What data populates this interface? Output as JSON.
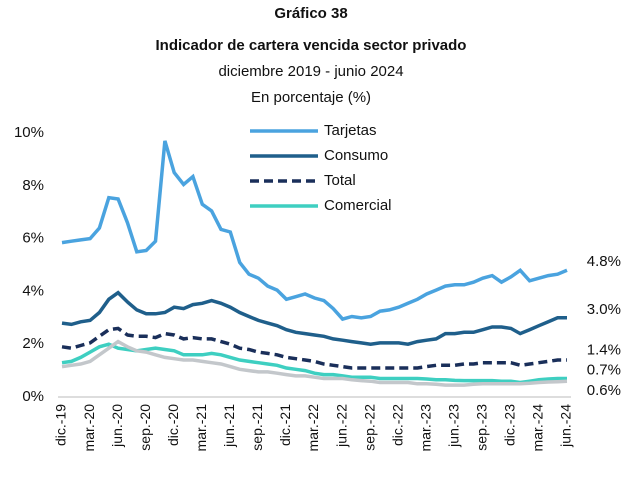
{
  "chart_data": {
    "type": "line",
    "title": "Gráfico 38",
    "title2": "Indicador de cartera vencida sector privado",
    "subtitle": "diciembre 2019 - junio 2024",
    "note": "En porcentaje (%)",
    "categories": [
      "dic.-19",
      null,
      null,
      "mar.-20",
      null,
      null,
      "jun.-20",
      null,
      null,
      "sep.-20",
      null,
      null,
      "dic.-20",
      null,
      null,
      "mar.-21",
      null,
      null,
      "jun.-21",
      null,
      null,
      "sep.-21",
      null,
      null,
      "dic.-21",
      null,
      null,
      "mar.-22",
      null,
      null,
      "jun.-22",
      null,
      null,
      "sep.-22",
      null,
      null,
      "dic.-22",
      null,
      null,
      "mar.-23",
      null,
      null,
      "jun.-23",
      null,
      null,
      "sep.-23",
      null,
      null,
      "dic.-23",
      null,
      null,
      "mar.-24",
      null,
      null,
      "jun.-24"
    ],
    "ylim": [
      0,
      10
    ],
    "yticks": [
      {
        "value": 0,
        "label": "0%"
      },
      {
        "value": 2,
        "label": "2%"
      },
      {
        "value": 4,
        "label": "4%"
      },
      {
        "value": 6,
        "label": "6%"
      },
      {
        "value": 8,
        "label": "8%"
      },
      {
        "value": 10,
        "label": "10%"
      }
    ],
    "grid": false,
    "series": [
      {
        "name": "Tarjetas",
        "color": "#4aa3df",
        "values": [
          5.85,
          5.9,
          5.95,
          6.0,
          6.4,
          7.55,
          7.5,
          6.6,
          5.5,
          5.55,
          5.9,
          9.7,
          8.5,
          8.05,
          8.35,
          7.3,
          7.05,
          6.35,
          6.25,
          5.1,
          4.65,
          4.5,
          4.2,
          4.05,
          3.7,
          3.8,
          3.9,
          3.75,
          3.65,
          3.35,
          2.95,
          3.05,
          3.0,
          3.05,
          3.25,
          3.3,
          3.4,
          3.55,
          3.7,
          3.9,
          4.05,
          4.2,
          4.25,
          4.25,
          4.35,
          4.5,
          4.6,
          4.35,
          4.55,
          4.8,
          4.4,
          4.5,
          4.6,
          4.65,
          4.8
        ],
        "value_labels": [
          null,
          null,
          null,
          null,
          null,
          null,
          null,
          null,
          null,
          null,
          null,
          null,
          null,
          null,
          null,
          null,
          null,
          null,
          null,
          null,
          null,
          null,
          null,
          null,
          null,
          null,
          null,
          null,
          null,
          null,
          null,
          null,
          null,
          null,
          null,
          null,
          null,
          null,
          null,
          null,
          null,
          null,
          null,
          null,
          null,
          null,
          null,
          null,
          null,
          null,
          null,
          null,
          null,
          null,
          "4.8%"
        ]
      },
      {
        "name": "Consumo",
        "color": "#1f5f8b",
        "values": [
          2.8,
          2.75,
          2.85,
          2.9,
          3.2,
          3.7,
          3.95,
          3.6,
          3.3,
          3.15,
          3.15,
          3.2,
          3.4,
          3.35,
          3.5,
          3.55,
          3.65,
          3.55,
          3.4,
          3.2,
          3.05,
          2.9,
          2.8,
          2.7,
          2.55,
          2.45,
          2.4,
          2.35,
          2.3,
          2.2,
          2.15,
          2.1,
          2.05,
          2.0,
          2.05,
          2.05,
          2.05,
          2.0,
          2.1,
          2.15,
          2.2,
          2.4,
          2.4,
          2.45,
          2.45,
          2.55,
          2.65,
          2.65,
          2.6,
          2.4,
          2.55,
          2.7,
          2.85,
          3.0,
          3.0
        ],
        "value_labels": [
          null,
          null,
          null,
          null,
          null,
          null,
          null,
          null,
          null,
          null,
          null,
          null,
          null,
          null,
          null,
          null,
          null,
          null,
          null,
          null,
          null,
          null,
          null,
          null,
          null,
          null,
          null,
          null,
          null,
          null,
          null,
          null,
          null,
          null,
          null,
          null,
          null,
          null,
          null,
          null,
          null,
          null,
          null,
          null,
          null,
          null,
          null,
          null,
          null,
          null,
          null,
          null,
          null,
          null,
          "3.0%"
        ]
      },
      {
        "name": "Total",
        "color": "#1a2f5a",
        "dash": true,
        "values": [
          1.9,
          1.85,
          1.95,
          2.05,
          2.3,
          2.55,
          2.6,
          2.35,
          2.3,
          2.3,
          2.25,
          2.4,
          2.35,
          2.2,
          2.25,
          2.2,
          2.2,
          2.1,
          2.0,
          1.85,
          1.8,
          1.7,
          1.65,
          1.6,
          1.5,
          1.45,
          1.4,
          1.35,
          1.25,
          1.2,
          1.15,
          1.1,
          1.1,
          1.1,
          1.1,
          1.1,
          1.1,
          1.1,
          1.1,
          1.15,
          1.2,
          1.2,
          1.2,
          1.25,
          1.25,
          1.3,
          1.3,
          1.3,
          1.3,
          1.2,
          1.25,
          1.3,
          1.35,
          1.4,
          1.4
        ],
        "value_labels": [
          null,
          null,
          null,
          null,
          null,
          null,
          null,
          null,
          null,
          null,
          null,
          null,
          null,
          null,
          null,
          null,
          null,
          null,
          null,
          null,
          null,
          null,
          null,
          null,
          null,
          null,
          null,
          null,
          null,
          null,
          null,
          null,
          null,
          null,
          null,
          null,
          null,
          null,
          null,
          null,
          null,
          null,
          null,
          null,
          null,
          null,
          null,
          null,
          null,
          null,
          null,
          null,
          null,
          null,
          "1.4%"
        ]
      },
      {
        "name": "Comercial",
        "color": "#3ecfc1",
        "values": [
          1.3,
          1.35,
          1.5,
          1.7,
          1.9,
          2.0,
          1.85,
          1.8,
          1.75,
          1.8,
          1.85,
          1.8,
          1.75,
          1.6,
          1.6,
          1.6,
          1.65,
          1.6,
          1.5,
          1.4,
          1.35,
          1.3,
          1.25,
          1.2,
          1.1,
          1.05,
          1.0,
          0.9,
          0.85,
          0.85,
          0.8,
          0.75,
          0.75,
          0.75,
          0.7,
          0.7,
          0.7,
          0.7,
          0.7,
          0.68,
          0.65,
          0.65,
          0.63,
          0.62,
          0.62,
          0.62,
          0.62,
          0.6,
          0.6,
          0.55,
          0.6,
          0.65,
          0.68,
          0.7,
          0.7
        ],
        "value_labels": [
          null,
          null,
          null,
          null,
          null,
          null,
          null,
          null,
          null,
          null,
          null,
          null,
          null,
          null,
          null,
          null,
          null,
          null,
          null,
          null,
          null,
          null,
          null,
          null,
          null,
          null,
          null,
          null,
          null,
          null,
          null,
          null,
          null,
          null,
          null,
          null,
          null,
          null,
          null,
          null,
          null,
          null,
          null,
          null,
          null,
          null,
          null,
          null,
          null,
          null,
          null,
          null,
          null,
          null,
          "0.7%"
        ]
      },
      {
        "color": "#c3c7cb",
        "values": [
          1.15,
          1.2,
          1.25,
          1.35,
          1.6,
          1.85,
          2.1,
          1.9,
          1.75,
          1.7,
          1.6,
          1.5,
          1.45,
          1.4,
          1.4,
          1.35,
          1.3,
          1.25,
          1.15,
          1.05,
          1.0,
          0.95,
          0.95,
          0.9,
          0.85,
          0.8,
          0.8,
          0.75,
          0.7,
          0.7,
          0.7,
          0.65,
          0.62,
          0.6,
          0.55,
          0.55,
          0.55,
          0.55,
          0.5,
          0.5,
          0.48,
          0.45,
          0.45,
          0.45,
          0.48,
          0.5,
          0.5,
          0.5,
          0.5,
          0.5,
          0.52,
          0.55,
          0.57,
          0.58,
          0.6
        ],
        "value_labels": [
          null,
          null,
          null,
          null,
          null,
          null,
          null,
          null,
          null,
          null,
          null,
          null,
          null,
          null,
          null,
          null,
          null,
          null,
          null,
          null,
          null,
          null,
          null,
          null,
          null,
          null,
          null,
          null,
          null,
          null,
          null,
          null,
          null,
          null,
          null,
          null,
          null,
          null,
          null,
          null,
          null,
          null,
          null,
          null,
          null,
          null,
          null,
          null,
          null,
          null,
          null,
          null,
          null,
          null,
          "0.6%"
        ]
      }
    ]
  }
}
